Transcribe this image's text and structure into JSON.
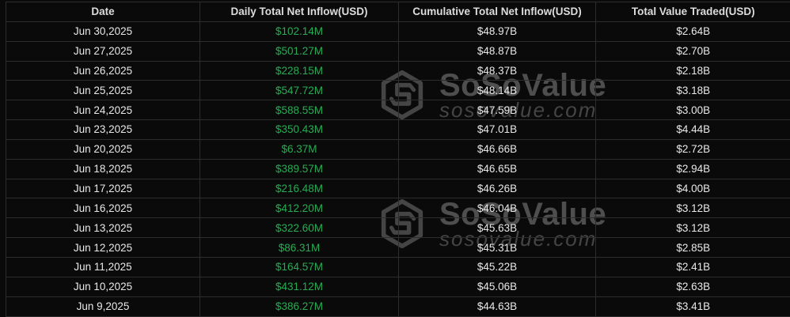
{
  "table": {
    "columns": [
      {
        "label": "Date"
      },
      {
        "label": "Daily Total Net Inflow(USD)"
      },
      {
        "label": "Cumulative Total Net Inflow(USD)"
      },
      {
        "label": "Total Value Traded(USD)"
      }
    ],
    "rows": [
      {
        "date": "Jun 30,2025",
        "daily": "$102.14M",
        "cumulative": "$48.97B",
        "traded": "$2.64B"
      },
      {
        "date": "Jun 27,2025",
        "daily": "$501.27M",
        "cumulative": "$48.87B",
        "traded": "$2.70B"
      },
      {
        "date": "Jun 26,2025",
        "daily": "$228.15M",
        "cumulative": "$48.37B",
        "traded": "$2.18B"
      },
      {
        "date": "Jun 25,2025",
        "daily": "$547.72M",
        "cumulative": "$48.14B",
        "traded": "$3.18B"
      },
      {
        "date": "Jun 24,2025",
        "daily": "$588.55M",
        "cumulative": "$47.59B",
        "traded": "$3.00B"
      },
      {
        "date": "Jun 23,2025",
        "daily": "$350.43M",
        "cumulative": "$47.01B",
        "traded": "$4.44B"
      },
      {
        "date": "Jun 20,2025",
        "daily": "$6.37M",
        "cumulative": "$46.66B",
        "traded": "$2.72B"
      },
      {
        "date": "Jun 18,2025",
        "daily": "$389.57M",
        "cumulative": "$46.65B",
        "traded": "$2.94B"
      },
      {
        "date": "Jun 17,2025",
        "daily": "$216.48M",
        "cumulative": "$46.26B",
        "traded": "$4.00B"
      },
      {
        "date": "Jun 16,2025",
        "daily": "$412.20M",
        "cumulative": "$46.04B",
        "traded": "$3.12B"
      },
      {
        "date": "Jun 13,2025",
        "daily": "$322.60M",
        "cumulative": "$45.63B",
        "traded": "$3.12B"
      },
      {
        "date": "Jun 12,2025",
        "daily": "$86.31M",
        "cumulative": "$45.31B",
        "traded": "$2.85B"
      },
      {
        "date": "Jun 11,2025",
        "daily": "$164.57M",
        "cumulative": "$45.22B",
        "traded": "$2.41B"
      },
      {
        "date": "Jun 10,2025",
        "daily": "$431.12M",
        "cumulative": "$45.06B",
        "traded": "$2.63B"
      },
      {
        "date": "Jun 9,2025",
        "daily": "$386.27M",
        "cumulative": "$44.63B",
        "traded": "$3.41B"
      }
    ]
  },
  "watermark": {
    "brand": "SoSoValue",
    "domain": "sosovalue.com"
  },
  "colors": {
    "positive_value": "#26ad53",
    "border": "#2d2d2d",
    "background": "#0a0a0a",
    "watermark_text": "#4e4e4e"
  }
}
